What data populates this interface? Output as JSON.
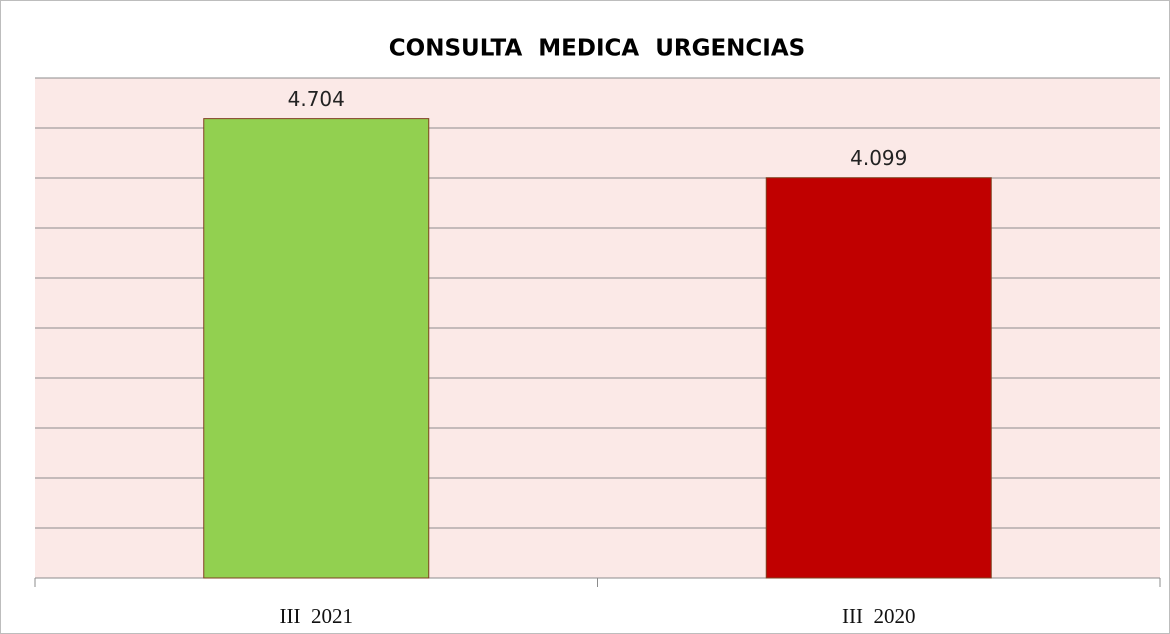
{
  "chart_data": {
    "type": "bar",
    "title": "CONSULTA  MEDICA  URGENCIAS",
    "categories": [
      "III  2021",
      "III  2020"
    ],
    "values": [
      4704,
      4099
    ],
    "value_labels": [
      "4.704",
      "4.099"
    ],
    "colors": [
      "#92d050",
      "#c00000"
    ],
    "ylim": [
      0,
      5120
    ],
    "yticks": [
      0,
      512,
      1024,
      1536,
      2048,
      2560,
      3072,
      3584,
      4096,
      4608,
      5120
    ],
    "grid": true
  }
}
